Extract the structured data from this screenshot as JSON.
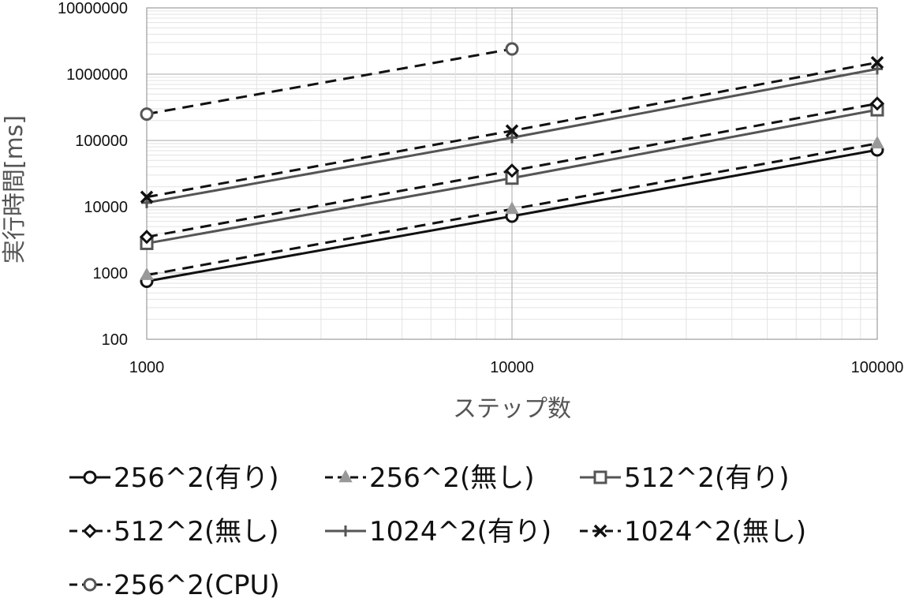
{
  "chart_data": {
    "type": "line",
    "title": "",
    "xlabel": "ステップ数",
    "ylabel": "実行時間[ms]",
    "x_scale": "log",
    "y_scale": "log",
    "xlim": [
      1000,
      100000
    ],
    "ylim": [
      100,
      10000000
    ],
    "x_ticks": [
      "1000",
      "10000",
      "100000"
    ],
    "y_ticks": [
      "100",
      "1000",
      "10000",
      "100000",
      "1000000",
      "10000000"
    ],
    "grid": true,
    "legend_position": "bottom",
    "series": [
      {
        "name": "256^2(有り)",
        "x": [
          1000,
          10000,
          100000
        ],
        "y": [
          750,
          7200,
          72000
        ],
        "color": "#111111",
        "dash": "solid",
        "marker": "circle"
      },
      {
        "name": "256^2(無し)",
        "x": [
          1000,
          10000,
          100000
        ],
        "y": [
          930,
          9200,
          90000
        ],
        "color": "#111111",
        "dash": "dashed",
        "marker": "triangle",
        "marker_color": "#999999"
      },
      {
        "name": "512^2(有り)",
        "x": [
          1000,
          10000,
          100000
        ],
        "y": [
          2800,
          27000,
          290000
        ],
        "color": "#555555",
        "dash": "solid",
        "marker": "square"
      },
      {
        "name": "512^2(無し)",
        "x": [
          1000,
          10000,
          100000
        ],
        "y": [
          3500,
          35000,
          360000
        ],
        "color": "#111111",
        "dash": "dashed",
        "marker": "diamond"
      },
      {
        "name": "1024^2(有り)",
        "x": [
          1000,
          10000,
          100000
        ],
        "y": [
          11500,
          110000,
          1200000
        ],
        "color": "#555555",
        "dash": "solid",
        "marker": "plus"
      },
      {
        "name": "1024^2(無し)",
        "x": [
          1000,
          10000,
          100000
        ],
        "y": [
          14000,
          140000,
          1500000
        ],
        "color": "#111111",
        "dash": "dashed",
        "marker": "cross"
      },
      {
        "name": "256^2(CPU)",
        "x": [
          1000,
          10000
        ],
        "y": [
          250000,
          2400000
        ],
        "color": "#111111",
        "dash": "dashed",
        "marker": "circle",
        "marker_color": "#555555"
      }
    ]
  }
}
